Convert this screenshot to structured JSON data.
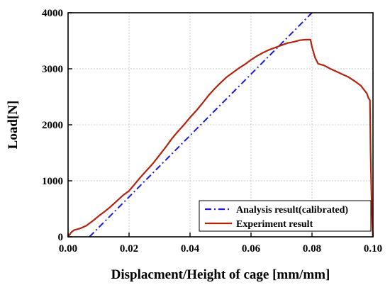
{
  "chart_data": {
    "type": "line",
    "xlabel": "Displacment/Height of cage [mm/mm]",
    "ylabel": "Load[N]",
    "xlim": [
      0,
      0.1
    ],
    "ylim": [
      0,
      4000
    ],
    "xticks": [
      "0.00",
      "0.02",
      "0.04",
      "0.06",
      "0.08",
      "0.10"
    ],
    "yticks": [
      "0",
      "1000",
      "2000",
      "3000",
      "4000"
    ],
    "grid": true,
    "legend_position": "bottom-right",
    "series": [
      {
        "name": "Analysis result(calibrated)",
        "color": "#1a1ae6",
        "style": "dash-dot",
        "x": [
          0.007,
          0.08
        ],
        "y": [
          0,
          4000
        ]
      },
      {
        "name": "Experiment result",
        "color": "#b22410",
        "style": "solid",
        "x": [
          0.0,
          0.001,
          0.002,
          0.004,
          0.006,
          0.008,
          0.01,
          0.012,
          0.014,
          0.016,
          0.018,
          0.02,
          0.022,
          0.024,
          0.026,
          0.028,
          0.03,
          0.032,
          0.034,
          0.036,
          0.038,
          0.04,
          0.042,
          0.044,
          0.046,
          0.048,
          0.05,
          0.052,
          0.054,
          0.056,
          0.058,
          0.06,
          0.062,
          0.064,
          0.066,
          0.068,
          0.07,
          0.072,
          0.074,
          0.076,
          0.078,
          0.0795,
          0.08,
          0.081,
          0.082,
          0.084,
          0.086,
          0.088,
          0.09,
          0.092,
          0.094,
          0.096,
          0.098,
          0.0985,
          0.099,
          0.0992,
          0.0995,
          0.0998,
          0.1
        ],
        "y": [
          0,
          80,
          120,
          150,
          200,
          280,
          370,
          450,
          540,
          640,
          740,
          820,
          950,
          1080,
          1200,
          1320,
          1460,
          1600,
          1750,
          1880,
          2000,
          2130,
          2250,
          2380,
          2520,
          2640,
          2750,
          2850,
          2930,
          3010,
          3080,
          3160,
          3230,
          3290,
          3340,
          3380,
          3420,
          3460,
          3480,
          3510,
          3520,
          3520,
          3390,
          3200,
          3090,
          3060,
          3000,
          2950,
          2900,
          2850,
          2780,
          2700,
          2560,
          2480,
          2440,
          1520,
          700,
          200,
          0
        ]
      }
    ]
  }
}
